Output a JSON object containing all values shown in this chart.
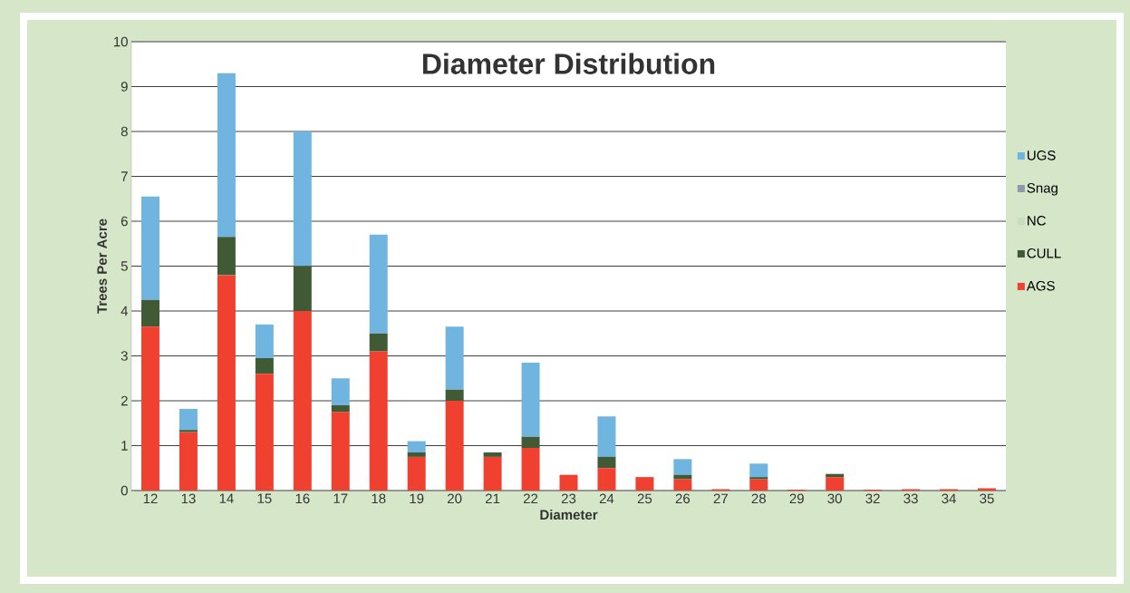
{
  "chart_data": {
    "type": "bar",
    "stacked": true,
    "title": "Diameter Distribution",
    "xlabel": "Diameter",
    "ylabel": "Trees Per Acre",
    "categories": [
      "12",
      "13",
      "14",
      "15",
      "16",
      "17",
      "18",
      "19",
      "20",
      "21",
      "22",
      "23",
      "24",
      "25",
      "26",
      "27",
      "28",
      "29",
      "30",
      "32",
      "33",
      "34",
      "35"
    ],
    "series": [
      {
        "name": "AGS",
        "color": "#f04030",
        "values": [
          3.65,
          1.3,
          4.8,
          2.6,
          4.0,
          1.75,
          3.1,
          0.75,
          2.0,
          0.75,
          0.95,
          0.35,
          0.5,
          0.3,
          0.25,
          0.03,
          0.25,
          0.02,
          0.3,
          0.02,
          0.03,
          0.03,
          0.05
        ]
      },
      {
        "name": "CULL",
        "color": "#3f5a35",
        "values": [
          0.6,
          0.05,
          0.85,
          0.35,
          1.0,
          0.15,
          0.4,
          0.1,
          0.25,
          0.1,
          0.25,
          0,
          0.25,
          0,
          0.1,
          0,
          0.05,
          0,
          0.07,
          0,
          0,
          0,
          0
        ]
      },
      {
        "name": "NC",
        "color": "#c8dcc0",
        "values": [
          0,
          0,
          0,
          0,
          0,
          0,
          0,
          0,
          0,
          0,
          0,
          0,
          0,
          0,
          0,
          0,
          0,
          0,
          0,
          0,
          0,
          0,
          0
        ]
      },
      {
        "name": "Snag",
        "color": "#8a9aa8",
        "values": [
          0,
          0,
          0,
          0,
          0,
          0,
          0,
          0,
          0,
          0,
          0,
          0,
          0,
          0,
          0,
          0,
          0,
          0,
          0,
          0,
          0,
          0,
          0
        ]
      },
      {
        "name": "UGS",
        "color": "#6fb5e0",
        "values": [
          2.3,
          0.47,
          3.65,
          0.75,
          3.0,
          0.6,
          2.2,
          0.25,
          1.4,
          0,
          1.65,
          0,
          0.9,
          0,
          0.35,
          0,
          0.3,
          0,
          0,
          0,
          0,
          0,
          0
        ]
      }
    ],
    "ylim": [
      0,
      10
    ],
    "yticks": [
      0,
      1,
      2,
      3,
      4,
      5,
      6,
      7,
      8,
      9,
      10
    ],
    "grid": "y",
    "legend": "right"
  }
}
